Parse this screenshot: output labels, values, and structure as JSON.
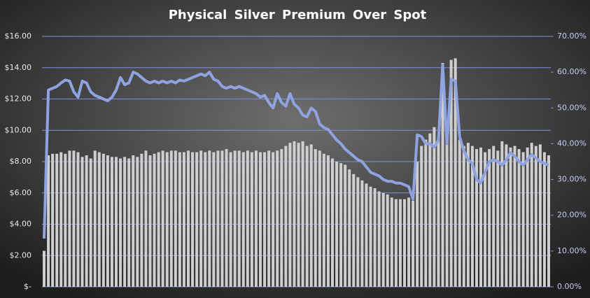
{
  "chart_data": {
    "type": "bar-line",
    "title": "Physical Silver Premium Over Spot",
    "ylim": [
      0,
      16
    ],
    "yticks": [
      {
        "value": 0,
        "label": "$-"
      },
      {
        "value": 2,
        "label": "$2.00"
      },
      {
        "value": 4,
        "label": "$4.00"
      },
      {
        "value": 6,
        "label": "$6.00"
      },
      {
        "value": 8,
        "label": "$8.00"
      },
      {
        "value": 10,
        "label": "$10.00"
      },
      {
        "value": 12,
        "label": "$12.00"
      },
      {
        "value": 14,
        "label": "$14.00"
      },
      {
        "value": 16,
        "label": "$16.00"
      }
    ],
    "y2lim": [
      0,
      70
    ],
    "y2ticks": [
      {
        "value": 0,
        "label": "0.00%"
      },
      {
        "value": 10,
        "label": "10.00%"
      },
      {
        "value": 20,
        "label": "20.00%"
      },
      {
        "value": 30,
        "label": "30.00%"
      },
      {
        "value": 40,
        "label": "40.00%"
      },
      {
        "value": 50,
        "label": "50.00%"
      },
      {
        "value": 60,
        "label": "60.00%"
      },
      {
        "value": 70,
        "label": "70.00%"
      }
    ],
    "grid": true,
    "series": [
      {
        "type": "bar",
        "color": "#cfcfcf",
        "values": [
          2.3,
          8.4,
          8.5,
          8.5,
          8.6,
          8.5,
          8.7,
          8.7,
          8.6,
          8.3,
          8.4,
          8.2,
          8.7,
          8.6,
          8.5,
          8.4,
          8.3,
          8.3,
          8.2,
          8.3,
          8.2,
          8.4,
          8.3,
          8.5,
          8.7,
          8.4,
          8.5,
          8.6,
          8.7,
          8.6,
          8.7,
          8.7,
          8.6,
          8.6,
          8.7,
          8.6,
          8.6,
          8.7,
          8.6,
          8.7,
          8.6,
          8.7,
          8.7,
          8.8,
          8.6,
          8.7,
          8.7,
          8.6,
          8.7,
          8.6,
          8.7,
          8.6,
          8.6,
          8.7,
          8.6,
          8.7,
          8.8,
          9.0,
          9.2,
          9.3,
          9.2,
          9.3,
          9.0,
          9.1,
          8.8,
          8.7,
          8.5,
          8.4,
          8.2,
          8.0,
          7.9,
          7.8,
          7.5,
          7.2,
          7.0,
          6.8,
          6.6,
          6.4,
          6.3,
          6.1,
          6.0,
          5.9,
          5.7,
          5.6,
          5.6,
          5.6,
          5.7,
          5.5,
          8.0,
          9.0,
          9.4,
          9.8,
          10.2,
          9.5,
          14.3,
          9.8,
          14.5,
          14.6,
          9.4,
          9.0,
          9.2,
          9.0,
          8.8,
          8.9,
          8.6,
          8.8,
          9.0,
          8.7,
          9.3,
          9.1,
          8.9,
          9.0,
          8.8,
          8.6,
          8.9,
          9.2,
          9.0,
          9.1,
          8.6,
          8.4
        ]
      },
      {
        "type": "line",
        "axis": "y2",
        "color": "#8fa3e0",
        "values": [
          13.5,
          55.0,
          55.5,
          56.0,
          57.0,
          57.8,
          57.5,
          54.5,
          53.0,
          57.5,
          57.0,
          54.5,
          53.5,
          53.0,
          52.5,
          52.0,
          53.0,
          55.0,
          58.5,
          56.5,
          57.0,
          60.0,
          59.5,
          58.5,
          57.5,
          57.0,
          57.5,
          57.0,
          57.5,
          57.0,
          57.5,
          57.0,
          57.8,
          57.5,
          58.0,
          58.5,
          59.0,
          59.5,
          59.0,
          60.0,
          58.0,
          57.5,
          56.0,
          55.5,
          56.0,
          55.5,
          56.0,
          55.5,
          55.0,
          54.5,
          54.0,
          53.0,
          53.5,
          51.5,
          50.0,
          54.0,
          51.5,
          50.5,
          54.0,
          51.0,
          50.0,
          48.0,
          47.5,
          50.0,
          49.0,
          45.5,
          44.5,
          44.0,
          42.5,
          41.0,
          40.0,
          38.5,
          37.5,
          36.5,
          35.5,
          35.0,
          33.5,
          32.0,
          31.5,
          31.0,
          30.0,
          29.5,
          29.5,
          29.0,
          29.0,
          28.5,
          28.0,
          24.5,
          42.5,
          42.0,
          40.0,
          40.0,
          39.0,
          41.0,
          62.0,
          40.0,
          58.0,
          57.5,
          42.0,
          38.0,
          35.5,
          34.5,
          30.0,
          29.0,
          32.0,
          35.0,
          35.5,
          35.0,
          34.0,
          35.5,
          37.5,
          36.5,
          35.0,
          34.0,
          35.5,
          37.0,
          36.0,
          35.0,
          34.5,
          34.0
        ]
      }
    ]
  }
}
